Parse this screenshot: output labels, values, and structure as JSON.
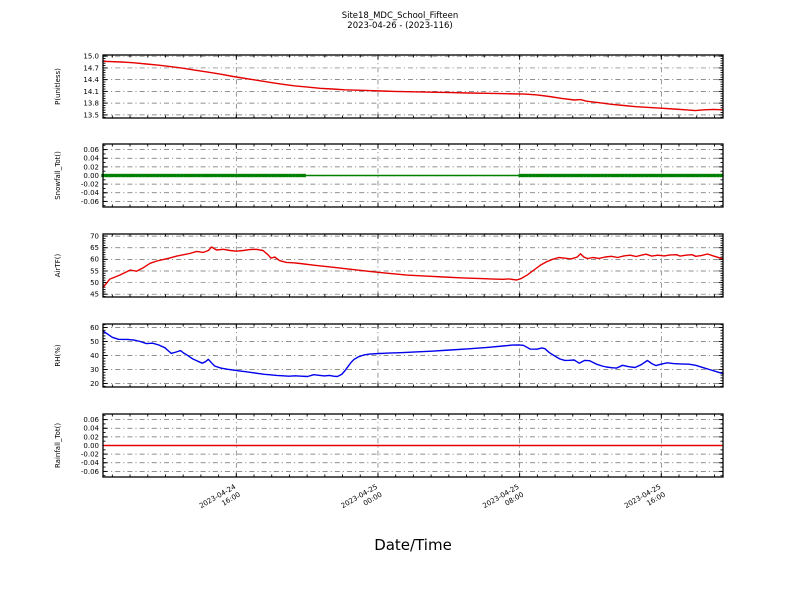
{
  "chart_data": {
    "type": "line",
    "title": "Site18_MDC_School_Fifteen",
    "subtitle": "2023-04-26 - (2023-116)",
    "xlabel": "Date/Time",
    "grid": true,
    "legend": "none",
    "x_ticks": [
      {
        "frac": 0.215,
        "date": "2023-04-24",
        "time": "16:00"
      },
      {
        "frac": 0.4435,
        "date": "2023-04-25",
        "time": "00:00"
      },
      {
        "frac": 0.672,
        "date": "2023-04-25",
        "time": "08:00"
      },
      {
        "frac": 0.9005,
        "date": "2023-04-25",
        "time": "16:00"
      }
    ],
    "colors": {
      "red": "#e60000",
      "green": "#008000",
      "blue": "#0000ee",
      "frame": "#000000",
      "background": "#ffffff"
    },
    "subplots": [
      {
        "id": "p",
        "ylabel": "P(unitless)",
        "color": "#e60000",
        "ylim": [
          13.42,
          15.03
        ],
        "ytick_values": [
          15.0,
          14.7,
          14.4,
          14.1,
          13.8,
          13.5
        ],
        "ytick_labels": [
          "15.0",
          "14.7",
          "14.4",
          "14.1",
          "13.8",
          "13.5"
        ],
        "yminor_step": 0.06,
        "points": [
          [
            0,
            14.87
          ],
          [
            0.03,
            14.85
          ],
          [
            0.05,
            14.83
          ],
          [
            0.07,
            14.8
          ],
          [
            0.09,
            14.77
          ],
          [
            0.11,
            14.73
          ],
          [
            0.13,
            14.69
          ],
          [
            0.15,
            14.64
          ],
          [
            0.17,
            14.59
          ],
          [
            0.19,
            14.54
          ],
          [
            0.21,
            14.48
          ],
          [
            0.23,
            14.43
          ],
          [
            0.25,
            14.38
          ],
          [
            0.27,
            14.33
          ],
          [
            0.29,
            14.28
          ],
          [
            0.31,
            14.24
          ],
          [
            0.33,
            14.21
          ],
          [
            0.35,
            14.18
          ],
          [
            0.37,
            14.16
          ],
          [
            0.39,
            14.14
          ],
          [
            0.41,
            14.13
          ],
          [
            0.43,
            14.12
          ],
          [
            0.45,
            14.11
          ],
          [
            0.47,
            14.1
          ],
          [
            0.5,
            14.09
          ],
          [
            0.53,
            14.08
          ],
          [
            0.56,
            14.07
          ],
          [
            0.59,
            14.06
          ],
          [
            0.62,
            14.05
          ],
          [
            0.65,
            14.04
          ],
          [
            0.68,
            14.03
          ],
          [
            0.7,
            14.01
          ],
          [
            0.72,
            13.97
          ],
          [
            0.74,
            13.92
          ],
          [
            0.76,
            13.88
          ],
          [
            0.77,
            13.89
          ],
          [
            0.78,
            13.85
          ],
          [
            0.8,
            13.81
          ],
          [
            0.82,
            13.77
          ],
          [
            0.84,
            13.74
          ],
          [
            0.86,
            13.71
          ],
          [
            0.88,
            13.69
          ],
          [
            0.9,
            13.67
          ],
          [
            0.92,
            13.65
          ],
          [
            0.94,
            13.63
          ],
          [
            0.955,
            13.61
          ],
          [
            0.97,
            13.63
          ],
          [
            0.985,
            13.64
          ],
          [
            1.0,
            13.63
          ]
        ]
      },
      {
        "id": "snowfall",
        "ylabel": "Snowfall_Tot()",
        "color": "#008000",
        "ylim": [
          -0.073,
          0.073
        ],
        "ytick_values": [
          0.06,
          0.04,
          0.02,
          0.0,
          -0.02,
          -0.04,
          -0.06
        ],
        "ytick_labels": [
          "0.06",
          "0.04",
          "0.02",
          "0.00",
          "-0.02",
          "-0.04",
          "-0.06"
        ],
        "yminor_step": 0.01,
        "points": [
          [
            0,
            0
          ],
          [
            1,
            0
          ]
        ],
        "marker_runs": [
          [
            0,
            0.327
          ],
          [
            0.673,
            1.0
          ]
        ],
        "marker_step": 0.0055,
        "marker_size": 3.4
      },
      {
        "id": "airtf",
        "ylabel": "AirTF()",
        "color": "#e60000",
        "ylim": [
          43.8,
          70.9
        ],
        "ytick_values": [
          70,
          65,
          60,
          55,
          50,
          45
        ],
        "ytick_labels": [
          "70",
          "65",
          "60",
          "55",
          "50",
          "45"
        ],
        "yminor_step": 1,
        "points": [
          [
            0,
            47.8
          ],
          [
            0.011,
            51.5
          ],
          [
            0.027,
            53.2
          ],
          [
            0.044,
            55.4
          ],
          [
            0.054,
            54.9
          ],
          [
            0.065,
            56.4
          ],
          [
            0.076,
            58.3
          ],
          [
            0.087,
            59.3
          ],
          [
            0.097,
            59.9
          ],
          [
            0.108,
            60.6
          ],
          [
            0.119,
            61.4
          ],
          [
            0.13,
            62.0
          ],
          [
            0.14,
            62.5
          ],
          [
            0.151,
            63.4
          ],
          [
            0.162,
            63.0
          ],
          [
            0.17,
            63.8
          ],
          [
            0.175,
            65.3
          ],
          [
            0.183,
            64.0
          ],
          [
            0.194,
            64.3
          ],
          [
            0.205,
            63.8
          ],
          [
            0.215,
            63.5
          ],
          [
            0.226,
            63.8
          ],
          [
            0.237,
            64.2
          ],
          [
            0.247,
            64.3
          ],
          [
            0.258,
            63.8
          ],
          [
            0.266,
            62.0
          ],
          [
            0.271,
            60.5
          ],
          [
            0.277,
            61.0
          ],
          [
            0.285,
            59.4
          ],
          [
            0.296,
            58.7
          ],
          [
            0.307,
            58.5
          ],
          [
            0.318,
            58.2
          ],
          [
            0.34,
            57.5
          ],
          [
            0.37,
            56.6
          ],
          [
            0.4,
            55.7
          ],
          [
            0.43,
            54.8
          ],
          [
            0.46,
            54.0
          ],
          [
            0.49,
            53.2
          ],
          [
            0.52,
            52.8
          ],
          [
            0.55,
            52.4
          ],
          [
            0.58,
            52.0
          ],
          [
            0.61,
            51.7
          ],
          [
            0.63,
            51.5
          ],
          [
            0.645,
            51.4
          ],
          [
            0.655,
            51.6
          ],
          [
            0.662,
            51.3
          ],
          [
            0.667,
            51.1
          ],
          [
            0.675,
            51.8
          ],
          [
            0.685,
            53.4
          ],
          [
            0.695,
            55.4
          ],
          [
            0.705,
            57.4
          ],
          [
            0.715,
            58.9
          ],
          [
            0.725,
            60.0
          ],
          [
            0.735,
            60.8
          ],
          [
            0.745,
            60.5
          ],
          [
            0.755,
            60.2
          ],
          [
            0.765,
            61.0
          ],
          [
            0.77,
            62.4
          ],
          [
            0.776,
            60.9
          ],
          [
            0.782,
            60.3
          ],
          [
            0.79,
            60.8
          ],
          [
            0.8,
            60.4
          ],
          [
            0.81,
            61.0
          ],
          [
            0.82,
            61.3
          ],
          [
            0.83,
            60.8
          ],
          [
            0.84,
            61.5
          ],
          [
            0.85,
            61.8
          ],
          [
            0.86,
            61.2
          ],
          [
            0.87,
            61.9
          ],
          [
            0.876,
            62.2
          ],
          [
            0.885,
            61.4
          ],
          [
            0.895,
            61.8
          ],
          [
            0.905,
            61.5
          ],
          [
            0.915,
            61.9
          ],
          [
            0.925,
            62.0
          ],
          [
            0.931,
            61.4
          ],
          [
            0.94,
            61.8
          ],
          [
            0.95,
            62.0
          ],
          [
            0.956,
            61.3
          ],
          [
            0.965,
            61.6
          ],
          [
            0.975,
            62.3
          ],
          [
            0.985,
            61.4
          ],
          [
            0.995,
            60.6
          ],
          [
            1.0,
            60.2
          ]
        ]
      },
      {
        "id": "rh",
        "ylabel": "RH(%)",
        "color": "#0000ee",
        "ylim": [
          17.5,
          62.5
        ],
        "ytick_values": [
          60,
          50,
          40,
          30,
          20
        ],
        "ytick_labels": [
          "60",
          "50",
          "40",
          "30",
          "20"
        ],
        "yminor_step": 2,
        "points": [
          [
            0,
            57.5
          ],
          [
            0.005,
            56.0
          ],
          [
            0.015,
            53.0
          ],
          [
            0.025,
            51.6
          ],
          [
            0.04,
            51.5
          ],
          [
            0.05,
            51.0
          ],
          [
            0.06,
            50.0
          ],
          [
            0.07,
            48.5
          ],
          [
            0.08,
            48.8
          ],
          [
            0.09,
            47.5
          ],
          [
            0.1,
            45.5
          ],
          [
            0.105,
            43.5
          ],
          [
            0.11,
            41.5
          ],
          [
            0.118,
            42.5
          ],
          [
            0.125,
            43.5
          ],
          [
            0.13,
            41.8
          ],
          [
            0.135,
            40.5
          ],
          [
            0.14,
            39.0
          ],
          [
            0.145,
            37.5
          ],
          [
            0.15,
            36.5
          ],
          [
            0.155,
            35.5
          ],
          [
            0.16,
            34.5
          ],
          [
            0.165,
            35.5
          ],
          [
            0.17,
            37.3
          ],
          [
            0.175,
            34.8
          ],
          [
            0.18,
            32.5
          ],
          [
            0.19,
            31.0
          ],
          [
            0.2,
            30.2
          ],
          [
            0.21,
            29.6
          ],
          [
            0.22,
            29.0
          ],
          [
            0.23,
            28.4
          ],
          [
            0.24,
            27.8
          ],
          [
            0.25,
            27.2
          ],
          [
            0.26,
            26.6
          ],
          [
            0.27,
            26.2
          ],
          [
            0.28,
            25.8
          ],
          [
            0.29,
            25.5
          ],
          [
            0.3,
            25.2
          ],
          [
            0.31,
            25.5
          ],
          [
            0.32,
            25.2
          ],
          [
            0.33,
            25.0
          ],
          [
            0.34,
            26.3
          ],
          [
            0.35,
            25.8
          ],
          [
            0.357,
            25.4
          ],
          [
            0.365,
            25.8
          ],
          [
            0.372,
            25.2
          ],
          [
            0.378,
            25.0
          ],
          [
            0.385,
            26.5
          ],
          [
            0.39,
            29.0
          ],
          [
            0.395,
            32.0
          ],
          [
            0.4,
            35.0
          ],
          [
            0.405,
            37.3
          ],
          [
            0.412,
            39.0
          ],
          [
            0.42,
            40.3
          ],
          [
            0.43,
            41.0
          ],
          [
            0.445,
            41.4
          ],
          [
            0.46,
            41.7
          ],
          [
            0.48,
            42.0
          ],
          [
            0.5,
            42.4
          ],
          [
            0.53,
            43.1
          ],
          [
            0.56,
            43.9
          ],
          [
            0.59,
            44.8
          ],
          [
            0.62,
            45.8
          ],
          [
            0.645,
            46.8
          ],
          [
            0.66,
            47.4
          ],
          [
            0.67,
            47.6
          ],
          [
            0.678,
            47.3
          ],
          [
            0.689,
            44.6
          ],
          [
            0.7,
            44.5
          ],
          [
            0.708,
            45.4
          ],
          [
            0.713,
            44.8
          ],
          [
            0.72,
            42.0
          ],
          [
            0.731,
            39.0
          ],
          [
            0.737,
            37.5
          ],
          [
            0.745,
            36.5
          ],
          [
            0.752,
            36.6
          ],
          [
            0.76,
            36.8
          ],
          [
            0.768,
            34.5
          ],
          [
            0.777,
            36.5
          ],
          [
            0.785,
            36.3
          ],
          [
            0.795,
            34.0
          ],
          [
            0.805,
            32.5
          ],
          [
            0.812,
            31.8
          ],
          [
            0.82,
            31.3
          ],
          [
            0.828,
            31.0
          ],
          [
            0.838,
            33.0
          ],
          [
            0.848,
            32.0
          ],
          [
            0.858,
            31.4
          ],
          [
            0.868,
            33.4
          ],
          [
            0.878,
            36.4
          ],
          [
            0.886,
            34.0
          ],
          [
            0.892,
            32.8
          ],
          [
            0.9,
            33.8
          ],
          [
            0.91,
            34.8
          ],
          [
            0.92,
            34.2
          ],
          [
            0.93,
            34.0
          ],
          [
            0.945,
            33.8
          ],
          [
            0.956,
            33.0
          ],
          [
            0.967,
            31.5
          ],
          [
            0.978,
            30.0
          ],
          [
            0.989,
            28.5
          ],
          [
            1.0,
            27.0
          ]
        ]
      },
      {
        "id": "rainfall",
        "ylabel": "Rainfall_Tot()",
        "color": "#e60000",
        "ylim": [
          -0.073,
          0.073
        ],
        "ytick_values": [
          0.06,
          0.04,
          0.02,
          0.0,
          -0.02,
          -0.04,
          -0.06
        ],
        "ytick_labels": [
          "0.06",
          "0.04",
          "0.02",
          "0.00",
          "-0.02",
          "-0.04",
          "-0.06"
        ],
        "yminor_step": 0.01,
        "points": [
          [
            0,
            0
          ],
          [
            1,
            0
          ]
        ]
      }
    ]
  }
}
